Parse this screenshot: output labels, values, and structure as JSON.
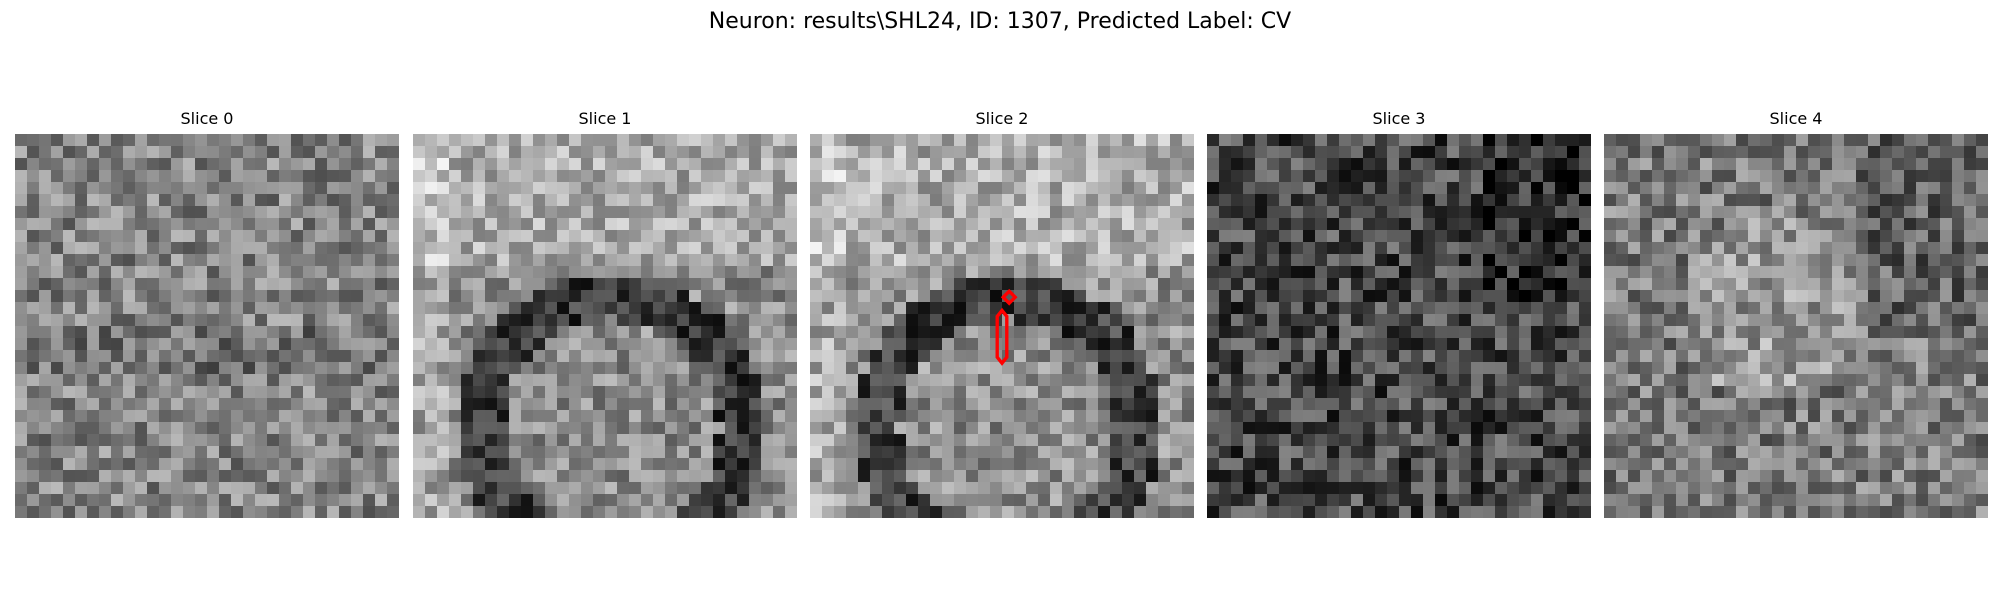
{
  "figure": {
    "title": "Neuron: results\\SHL24, ID: 1307, Predicted Label: CV"
  },
  "colormap": "grayscale",
  "overlay_color": "#ff0000",
  "panels": [
    {
      "title": "Slice 0",
      "seed": 11,
      "base": 0.52,
      "contrast": 0.42
    },
    {
      "title": "Slice 1",
      "seed": 23,
      "base": 0.55,
      "contrast": 0.38
    },
    {
      "title": "Slice 2",
      "seed": 37,
      "base": 0.56,
      "contrast": 0.4
    },
    {
      "title": "Slice 3",
      "seed": 41,
      "base": 0.28,
      "contrast": 0.48
    },
    {
      "title": "Slice 4",
      "seed": 53,
      "base": 0.48,
      "contrast": 0.44
    }
  ]
}
